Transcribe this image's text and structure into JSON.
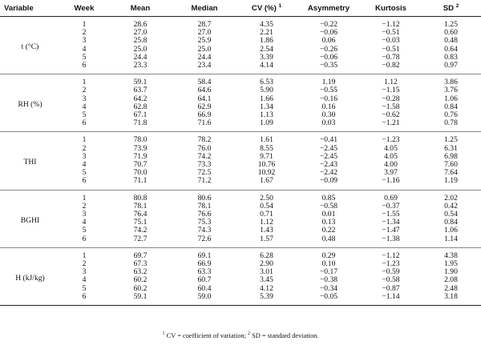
{
  "table": {
    "headers": {
      "variable": "Variable",
      "week": "Week",
      "mean": "Mean",
      "median": "Median",
      "cv": "CV (%)",
      "cv_sup": "1",
      "asymmetry": "Asymmetry",
      "kurtosis": "Kurtosis",
      "sd": "SD",
      "sd_sup": "2"
    },
    "groups": [
      {
        "variable": "t (°C)",
        "rows": [
          {
            "week": "1",
            "mean": "28.6",
            "median": "28.7",
            "cv": "4.35",
            "asymmetry": "−0.22",
            "kurtosis": "−1.12",
            "sd": "1.25"
          },
          {
            "week": "2",
            "mean": "27.0",
            "median": "27.0",
            "cv": "2.21",
            "asymmetry": "−0.06",
            "kurtosis": "−0.51",
            "sd": "0.60"
          },
          {
            "week": "3",
            "mean": "25.8",
            "median": "25.9",
            "cv": "1.86",
            "asymmetry": "0.06",
            "kurtosis": "−0.03",
            "sd": "0.48"
          },
          {
            "week": "4",
            "mean": "25.0",
            "median": "25.0",
            "cv": "2.54",
            "asymmetry": "−0.26",
            "kurtosis": "−0.51",
            "sd": "0.64"
          },
          {
            "week": "5",
            "mean": "24.4",
            "median": "24.4",
            "cv": "3.39",
            "asymmetry": "−0.06",
            "kurtosis": "−0.78",
            "sd": "0.83"
          },
          {
            "week": "6",
            "mean": "23.3",
            "median": "23.4",
            "cv": "4.14",
            "asymmetry": "−0.35",
            "kurtosis": "−0.82",
            "sd": "0.97"
          }
        ]
      },
      {
        "variable": "RH (%)",
        "rows": [
          {
            "week": "1",
            "mean": "59.1",
            "median": "58.4",
            "cv": "6.53",
            "asymmetry": "1.19",
            "kurtosis": "1.12",
            "sd": "3.86"
          },
          {
            "week": "2",
            "mean": "63.7",
            "median": "64.6",
            "cv": "5.90",
            "asymmetry": "−0.55",
            "kurtosis": "−1.15",
            "sd": "3.76"
          },
          {
            "week": "3",
            "mean": "64.2",
            "median": "64.1",
            "cv": "1.66",
            "asymmetry": "−0.16",
            "kurtosis": "−0.28",
            "sd": "1.06"
          },
          {
            "week": "4",
            "mean": "62.8",
            "median": "62.9",
            "cv": "1.34",
            "asymmetry": "0.16",
            "kurtosis": "−1.58",
            "sd": "0.84"
          },
          {
            "week": "5",
            "mean": "67.1",
            "median": "66.9",
            "cv": "1.13",
            "asymmetry": "0.30",
            "kurtosis": "−0.62",
            "sd": "0.76"
          },
          {
            "week": "6",
            "mean": "71.8",
            "median": "71.6",
            "cv": "1.09",
            "asymmetry": "0.03",
            "kurtosis": "−1.21",
            "sd": "0.78"
          }
        ]
      },
      {
        "variable": "THI",
        "rows": [
          {
            "week": "1",
            "mean": "78.0",
            "median": "78.2",
            "cv": "1.61",
            "asymmetry": "−0.41",
            "kurtosis": "−1.23",
            "sd": "1.25"
          },
          {
            "week": "2",
            "mean": "73.9",
            "median": "76.0",
            "cv": "8.55",
            "asymmetry": "−2.45",
            "kurtosis": "4.05",
            "sd": "6.31"
          },
          {
            "week": "3",
            "mean": "71.9",
            "median": "74.2",
            "cv": "9.71",
            "asymmetry": "−2.45",
            "kurtosis": "4.05",
            "sd": "6.98"
          },
          {
            "week": "4",
            "mean": "70.7",
            "median": "73.3",
            "cv": "10.76",
            "asymmetry": "−2.43",
            "kurtosis": "4.00",
            "sd": "7.60"
          },
          {
            "week": "5",
            "mean": "70.0",
            "median": "72.5",
            "cv": "10.92",
            "asymmetry": "−2.42",
            "kurtosis": "3.97",
            "sd": "7.64"
          },
          {
            "week": "6",
            "mean": "71.1",
            "median": "71.2",
            "cv": "1.67",
            "asymmetry": "−0.09",
            "kurtosis": "−1.16",
            "sd": "1.19"
          }
        ]
      },
      {
        "variable": "BGHI",
        "rows": [
          {
            "week": "1",
            "mean": "80.8",
            "median": "80.6",
            "cv": "2.50",
            "asymmetry": "0.85",
            "kurtosis": "0.69",
            "sd": "2.02"
          },
          {
            "week": "2",
            "mean": "78.1",
            "median": "78.1",
            "cv": "0.54",
            "asymmetry": "−0.58",
            "kurtosis": "−0.37",
            "sd": "0.42"
          },
          {
            "week": "3",
            "mean": "76.4",
            "median": "76.6",
            "cv": "0.71",
            "asymmetry": "0.01",
            "kurtosis": "−1.55",
            "sd": "0.54"
          },
          {
            "week": "4",
            "mean": "75.1",
            "median": "75.3",
            "cv": "1.12",
            "asymmetry": "0.13",
            "kurtosis": "−1.34",
            "sd": "0.84"
          },
          {
            "week": "5",
            "mean": "74.2",
            "median": "74.3",
            "cv": "1.43",
            "asymmetry": "0.22",
            "kurtosis": "−1.47",
            "sd": "1.06"
          },
          {
            "week": "6",
            "mean": "72.7",
            "median": "72.6",
            "cv": "1.57",
            "asymmetry": "0.48",
            "kurtosis": "−1.38",
            "sd": "1.14"
          }
        ]
      },
      {
        "variable": "H (kJ/kg)",
        "rows": [
          {
            "week": "1",
            "mean": "69.7",
            "median": "69.1",
            "cv": "6.28",
            "asymmetry": "0.29",
            "kurtosis": "−1.12",
            "sd": "4.38"
          },
          {
            "week": "2",
            "mean": "67.3",
            "median": "66.9",
            "cv": "2.90",
            "asymmetry": "0.10",
            "kurtosis": "−1.23",
            "sd": "1.95"
          },
          {
            "week": "3",
            "mean": "63.2",
            "median": "63.3",
            "cv": "3.01",
            "asymmetry": "−0.17",
            "kurtosis": "−0.59",
            "sd": "1.90"
          },
          {
            "week": "4",
            "mean": "60.2",
            "median": "60.7",
            "cv": "3.45",
            "asymmetry": "−0.38",
            "kurtosis": "−0.58",
            "sd": "2.08"
          },
          {
            "week": "5",
            "mean": "60.2",
            "median": "60.4",
            "cv": "4.12",
            "asymmetry": "−0.34",
            "kurtosis": "−0.87",
            "sd": "2.48"
          },
          {
            "week": "6",
            "mean": "59.1",
            "median": "59.0",
            "cv": "5.39",
            "asymmetry": "−0.05",
            "kurtosis": "−1.14",
            "sd": "3.18"
          }
        ]
      }
    ]
  },
  "footnote": {
    "sup1": "1",
    "text1": " CV = coefficient of variation; ",
    "sup2": "2",
    "text2": " SD = standard deviation."
  }
}
